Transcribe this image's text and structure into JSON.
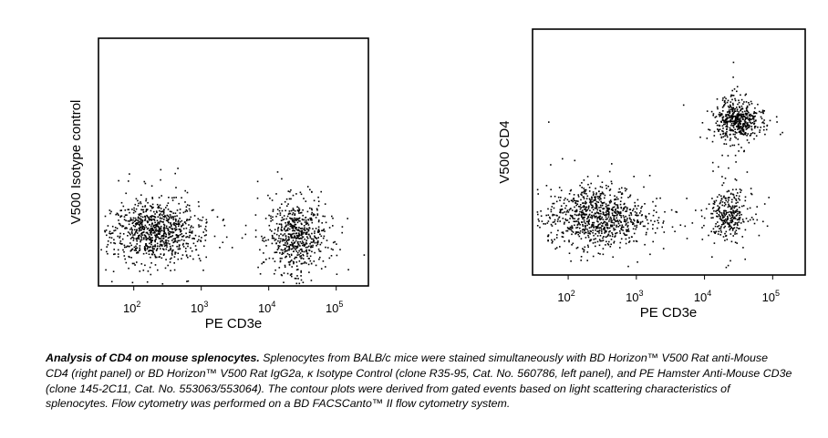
{
  "chart_data": [
    {
      "type": "scatter",
      "title": "",
      "xlabel": "PE CD3e",
      "ylabel": "V500 Isotype control",
      "xscale": "log",
      "xlim": [
        30,
        300000
      ],
      "ylim": [
        0,
        1
      ],
      "xticks": [
        {
          "mantissa": "10",
          "exp": "2",
          "value": 100
        },
        {
          "mantissa": "10",
          "exp": "3",
          "value": 1000
        },
        {
          "mantissa": "10",
          "exp": "4",
          "value": 10000
        },
        {
          "mantissa": "10",
          "exp": "5",
          "value": 100000
        }
      ],
      "populations": [
        {
          "x_center": 200,
          "y_center": 0.22,
          "x_spread_log": 0.32,
          "y_spread": 0.06,
          "density": 1.0
        },
        {
          "x_center": 25000,
          "y_center": 0.2,
          "x_spread_log": 0.2,
          "y_spread": 0.07,
          "density": 0.7
        }
      ]
    },
    {
      "type": "scatter",
      "title": "",
      "xlabel": "PE CD3e",
      "ylabel": "V500 CD4",
      "xscale": "log",
      "xlim": [
        30,
        300000
      ],
      "ylim": [
        0,
        1
      ],
      "xticks": [
        {
          "mantissa": "10",
          "exp": "2",
          "value": 100
        },
        {
          "mantissa": "10",
          "exp": "3",
          "value": 1000
        },
        {
          "mantissa": "10",
          "exp": "4",
          "value": 10000
        },
        {
          "mantissa": "10",
          "exp": "5",
          "value": 100000
        }
      ],
      "populations": [
        {
          "x_center": 250,
          "y_center": 0.24,
          "x_spread_log": 0.35,
          "y_spread": 0.06,
          "density": 1.0
        },
        {
          "x_center": 30000,
          "y_center": 0.63,
          "x_spread_log": 0.15,
          "y_spread": 0.04,
          "density": 0.55
        },
        {
          "x_center": 22000,
          "y_center": 0.25,
          "x_spread_log": 0.14,
          "y_spread": 0.05,
          "density": 0.35
        }
      ]
    }
  ],
  "caption": {
    "lead": "Analysis of CD4 on mouse splenocytes.",
    "body": "Splenocytes from BALB/c mice were stained simultaneously with BD Horizon™ V500 Rat anti-Mouse CD4 (right panel) or BD Horizon™ V500 Rat IgG2a, κ Isotype Control (clone R35-95, Cat. No. 560786, left panel), and PE Hamster Anti-Mouse CD3e (clone 145-2C11, Cat. No. 553063/553064). The contour plots were derived from gated events based on light scattering characteristics of splenocytes. Flow cytometry was performed on a BD FACSCanto™ II flow cytometry system."
  }
}
